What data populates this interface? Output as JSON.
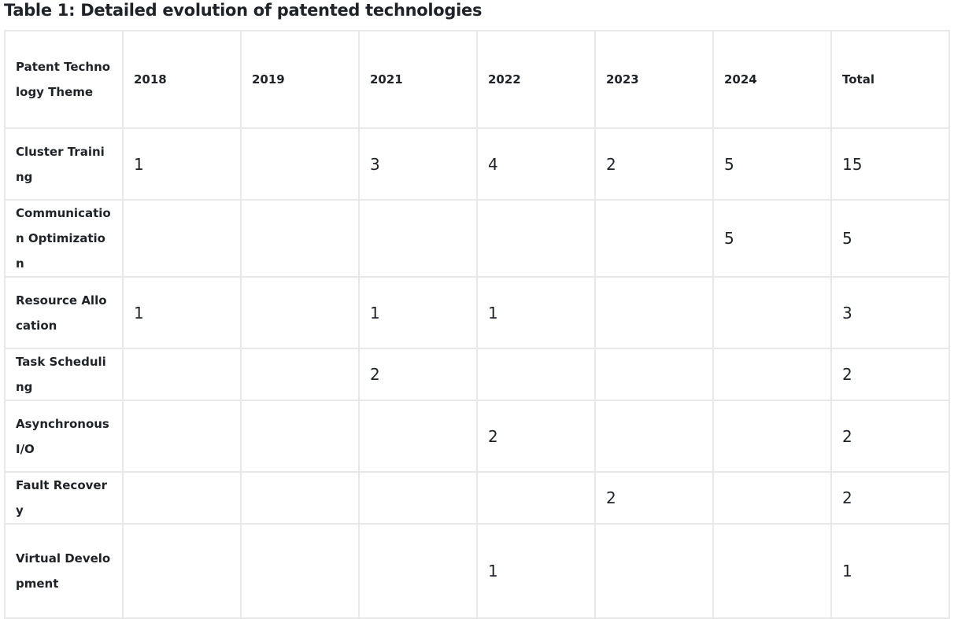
{
  "title": "Table 1: Detailed evolution of patented technologies",
  "table": {
    "header": [
      "Patent Technology Theme",
      "2018",
      "2019",
      "2021",
      "2022",
      "2023",
      "2024",
      "Total"
    ],
    "rows": [
      [
        "Cluster Training",
        1,
        null,
        3,
        4,
        2,
        5,
        15
      ],
      [
        "Communication Optimization",
        null,
        null,
        null,
        null,
        null,
        5,
        5
      ],
      [
        "Resource Allocation",
        1,
        null,
        1,
        1,
        null,
        null,
        3
      ],
      [
        "Task Scheduling",
        null,
        null,
        2,
        null,
        null,
        null,
        2
      ],
      [
        "Asynchronous I/O",
        null,
        null,
        null,
        2,
        null,
        null,
        2
      ],
      [
        "Fault Recovery",
        null,
        null,
        null,
        null,
        2,
        null,
        2
      ],
      [
        "Virtual Development",
        null,
        null,
        null,
        1,
        null,
        null,
        1
      ]
    ]
  }
}
